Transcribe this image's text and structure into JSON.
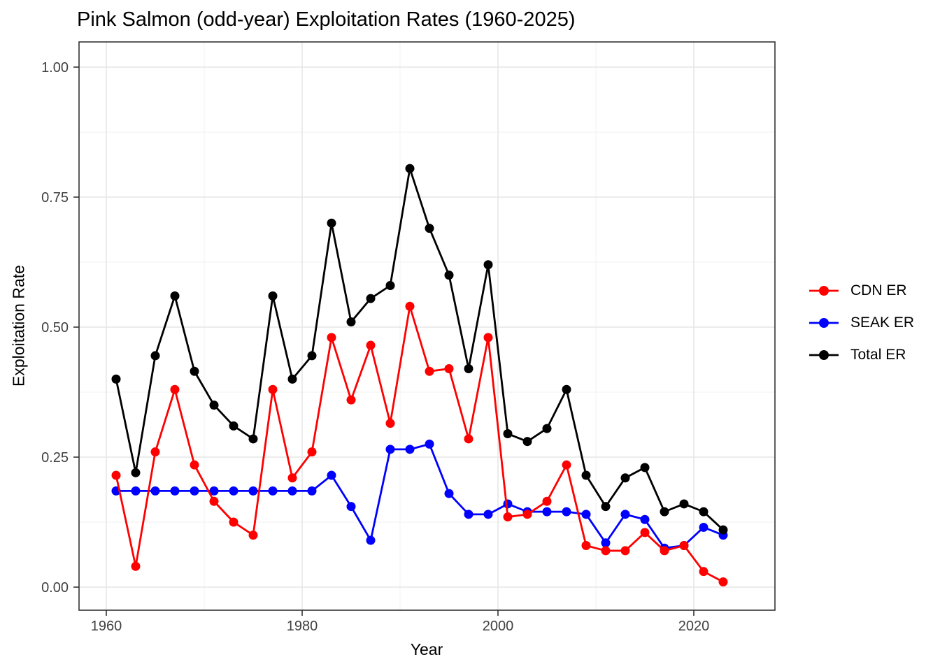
{
  "title": "Pink Salmon (odd-year) Exploitation Rates (1960-2025)",
  "chart_data": {
    "type": "line",
    "x": [
      1961,
      1963,
      1965,
      1967,
      1969,
      1971,
      1973,
      1975,
      1977,
      1979,
      1981,
      1983,
      1985,
      1987,
      1989,
      1991,
      1993,
      1995,
      1997,
      1999,
      2001,
      2003,
      2005,
      2007,
      2009,
      2011,
      2013,
      2015,
      2017,
      2019,
      2021,
      2023
    ],
    "series": [
      {
        "name": "CDN ER",
        "color": "#FF0000",
        "values": [
          0.215,
          0.04,
          0.26,
          0.38,
          0.235,
          0.165,
          0.125,
          0.1,
          0.38,
          0.21,
          0.26,
          0.48,
          0.36,
          0.465,
          0.315,
          0.54,
          0.415,
          0.42,
          0.285,
          0.48,
          0.135,
          0.14,
          0.165,
          0.235,
          0.08,
          0.07,
          0.07,
          0.105,
          0.07,
          0.08,
          0.03,
          0.01
        ]
      },
      {
        "name": "SEAK ER",
        "color": "#0000FF",
        "values": [
          0.185,
          0.185,
          0.185,
          0.185,
          0.185,
          0.185,
          0.185,
          0.185,
          0.185,
          0.185,
          0.185,
          0.215,
          0.155,
          0.09,
          0.265,
          0.265,
          0.275,
          0.18,
          0.14,
          0.14,
          0.16,
          0.145,
          0.145,
          0.145,
          0.14,
          0.085,
          0.14,
          0.13,
          0.075,
          0.08,
          0.115,
          0.1
        ]
      },
      {
        "name": "Total ER",
        "color": "#000000",
        "values": [
          0.4,
          0.22,
          0.445,
          0.56,
          0.415,
          0.35,
          0.31,
          0.285,
          0.56,
          0.4,
          0.445,
          0.7,
          0.51,
          0.555,
          0.58,
          0.805,
          0.69,
          0.6,
          0.42,
          0.62,
          0.295,
          0.28,
          0.305,
          0.38,
          0.215,
          0.155,
          0.21,
          0.23,
          0.145,
          0.16,
          0.145,
          0.11
        ]
      }
    ],
    "title": "Pink Salmon (odd-year) Exploitation Rates (1960-2025)",
    "xlabel": "Year",
    "ylabel": "Exploitation Rate",
    "x_tick_labels": [
      "1960",
      "1980",
      "2000",
      "2020"
    ],
    "x_tick_values": [
      1960,
      1980,
      2000,
      2020
    ],
    "x_minor_values": [
      1970,
      1990,
      2010
    ],
    "y_tick_labels": [
      "0.00",
      "0.25",
      "0.50",
      "0.75",
      "1.00"
    ],
    "y_tick_values": [
      0,
      0.25,
      0.5,
      0.75,
      1.0
    ],
    "y_minor_values": [
      0.125,
      0.375,
      0.625,
      0.875
    ],
    "xlim": [
      1957.2,
      2028.3
    ],
    "ylim": [
      -0.046,
      1.048
    ],
    "grid": true,
    "legend_position": "right",
    "colors": {
      "background": "#FFFFFF",
      "panel_background": "#FFFFFF",
      "grid_major": "#E6E6E6",
      "grid_minor": "#F2F2F2",
      "panel_border": "#333333",
      "tick_mark": "#333333",
      "tick_text": "#404040",
      "title_text": "#000000"
    }
  }
}
